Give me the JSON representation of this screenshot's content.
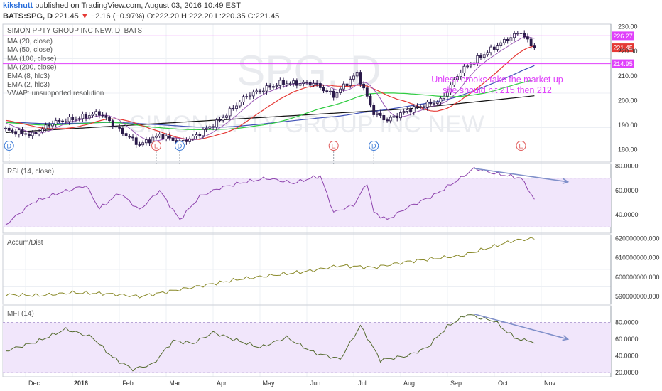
{
  "header": {
    "author": "kikshutt",
    "published": "published on TradingView.com, August 03, 2016 10:49 EST",
    "ticker_line": "BATS:SPG, D",
    "price": "221.45",
    "change": "−2.16 (−0.97%)",
    "o": "O:222.20",
    "h": "H:222.20",
    "l": "L:220.35",
    "c": "C:221.45"
  },
  "chart_data": {
    "type": "line",
    "title": "SIMON PPTY GROUP INC NEW, D, BATS",
    "watermark_symbol": "SPG, D",
    "watermark_name": "SIMON PPTY GROUP INC NEW",
    "legend": [
      "MA (20, close)",
      "MA (50, close)",
      "MA (100, close)",
      "MA (200, close)",
      "EMA (8, hlc3)",
      "EMA (2, hlc3)",
      "VWAP: unsupported resolution"
    ],
    "annotation": [
      "Unless crooks take the market up",
      "she should hit 215 then 212"
    ],
    "x_labels": [
      "Dec",
      "2016",
      "Feb",
      "Mar",
      "Apr",
      "May",
      "Jun",
      "Jul",
      "Aug",
      "Sep",
      "Oct",
      "Nov"
    ],
    "price_axis": {
      "ylim": [
        175,
        231
      ],
      "ticks": [
        "230.00",
        "220.00",
        "210.00",
        "200.00",
        "190.00",
        "180.00"
      ]
    },
    "levels": [
      {
        "value": 226.27,
        "label": "226.27",
        "color": "#e040fb"
      },
      {
        "value": 214.95,
        "label": "214.95",
        "color": "#e040fb"
      }
    ],
    "last_price": {
      "value": 221.45,
      "label": "221.45",
      "color": "#e53935"
    },
    "event_markers": [
      {
        "text": "D",
        "bar": 1,
        "color": "#3d7bd6"
      },
      {
        "text": "E",
        "bar": 45,
        "color": "#e05a5a"
      },
      {
        "text": "D",
        "bar": 52,
        "color": "#3d7bd6"
      },
      {
        "text": "E",
        "bar": 98,
        "color": "#e05a5a"
      },
      {
        "text": "D",
        "bar": 110,
        "color": "#3d7bd6"
      },
      {
        "text": "E",
        "bar": 154,
        "color": "#e05a5a"
      }
    ],
    "close_anchors": [
      [
        0,
        188
      ],
      [
        8,
        186
      ],
      [
        14,
        191
      ],
      [
        22,
        193
      ],
      [
        28,
        195
      ],
      [
        34,
        188
      ],
      [
        40,
        182
      ],
      [
        46,
        186
      ],
      [
        52,
        183
      ],
      [
        56,
        185
      ],
      [
        64,
        192
      ],
      [
        72,
        202
      ],
      [
        82,
        207
      ],
      [
        92,
        207
      ],
      [
        98,
        202
      ],
      [
        105,
        211
      ],
      [
        110,
        195
      ],
      [
        114,
        192
      ],
      [
        120,
        196
      ],
      [
        130,
        200
      ],
      [
        136,
        212
      ],
      [
        142,
        218
      ],
      [
        150,
        225
      ],
      [
        154,
        228
      ],
      [
        156,
        224
      ],
      [
        158,
        221.45
      ]
    ],
    "ma_colors": {
      "ma20": "#e53935",
      "ma50": "#2ecc40",
      "ma100": "#3f51b5",
      "ma200": "#111111",
      "price": "#5a2d91",
      "ema8": "#9b59b6"
    },
    "rsi": {
      "label": "RSI (14, close)",
      "ylim": [
        25,
        82
      ],
      "band": [
        30,
        70
      ],
      "ticks": [
        "80.0000",
        "60.0000",
        "40.0000"
      ],
      "anchors": [
        [
          0,
          32
        ],
        [
          8,
          50
        ],
        [
          16,
          58
        ],
        [
          24,
          64
        ],
        [
          28,
          45
        ],
        [
          34,
          58
        ],
        [
          40,
          44
        ],
        [
          46,
          60
        ],
        [
          52,
          36
        ],
        [
          58,
          55
        ],
        [
          64,
          62
        ],
        [
          70,
          66
        ],
        [
          78,
          70
        ],
        [
          86,
          66
        ],
        [
          94,
          72
        ],
        [
          98,
          42
        ],
        [
          104,
          48
        ],
        [
          108,
          66
        ],
        [
          110,
          42
        ],
        [
          114,
          36
        ],
        [
          120,
          46
        ],
        [
          128,
          56
        ],
        [
          136,
          70
        ],
        [
          140,
          78
        ],
        [
          146,
          74
        ],
        [
          150,
          72
        ],
        [
          154,
          70
        ],
        [
          156,
          62
        ],
        [
          158,
          52
        ]
      ]
    },
    "accum": {
      "label": "Accum/Dist",
      "ylim": [
        586000000,
        622000000
      ],
      "ticks": [
        "620000000.000",
        "610000000.000",
        "600000000.000",
        "590000000.000"
      ],
      "anchors": [
        [
          0,
          591000000
        ],
        [
          10,
          590500000
        ],
        [
          20,
          592000000
        ],
        [
          30,
          591500000
        ],
        [
          40,
          590000000
        ],
        [
          50,
          593000000
        ],
        [
          60,
          596000000
        ],
        [
          70,
          599000000
        ],
        [
          80,
          601000000
        ],
        [
          90,
          603000000
        ],
        [
          100,
          606000000
        ],
        [
          110,
          605000000
        ],
        [
          120,
          608000000
        ],
        [
          130,
          610000000
        ],
        [
          136,
          611000000
        ],
        [
          140,
          613000000
        ],
        [
          146,
          616000000
        ],
        [
          152,
          619000000
        ],
        [
          158,
          620000000
        ]
      ]
    },
    "mfi": {
      "label": "MFI (14)",
      "ylim": [
        15,
        100
      ],
      "band": [
        20,
        80
      ],
      "ticks": [
        "80.0000",
        "60.0000",
        "40.0000",
        "20.0000"
      ],
      "anchors": [
        [
          0,
          46
        ],
        [
          10,
          58
        ],
        [
          18,
          72
        ],
        [
          26,
          62
        ],
        [
          32,
          38
        ],
        [
          38,
          24
        ],
        [
          44,
          30
        ],
        [
          50,
          58
        ],
        [
          56,
          55
        ],
        [
          62,
          68
        ],
        [
          68,
          60
        ],
        [
          76,
          50
        ],
        [
          84,
          62
        ],
        [
          92,
          44
        ],
        [
          100,
          36
        ],
        [
          106,
          76
        ],
        [
          112,
          35
        ],
        [
          120,
          40
        ],
        [
          126,
          50
        ],
        [
          132,
          75
        ],
        [
          138,
          90
        ],
        [
          142,
          85
        ],
        [
          146,
          82
        ],
        [
          150,
          68
        ],
        [
          154,
          58
        ],
        [
          156,
          60
        ],
        [
          158,
          54
        ]
      ]
    },
    "trend_arrows": [
      {
        "pane": "rsi",
        "from": [
          140,
          78
        ],
        "to": [
          168,
          67
        ]
      },
      {
        "pane": "mfi",
        "from": [
          140,
          90
        ],
        "to": [
          168,
          60
        ]
      }
    ],
    "num_bars": 180
  }
}
